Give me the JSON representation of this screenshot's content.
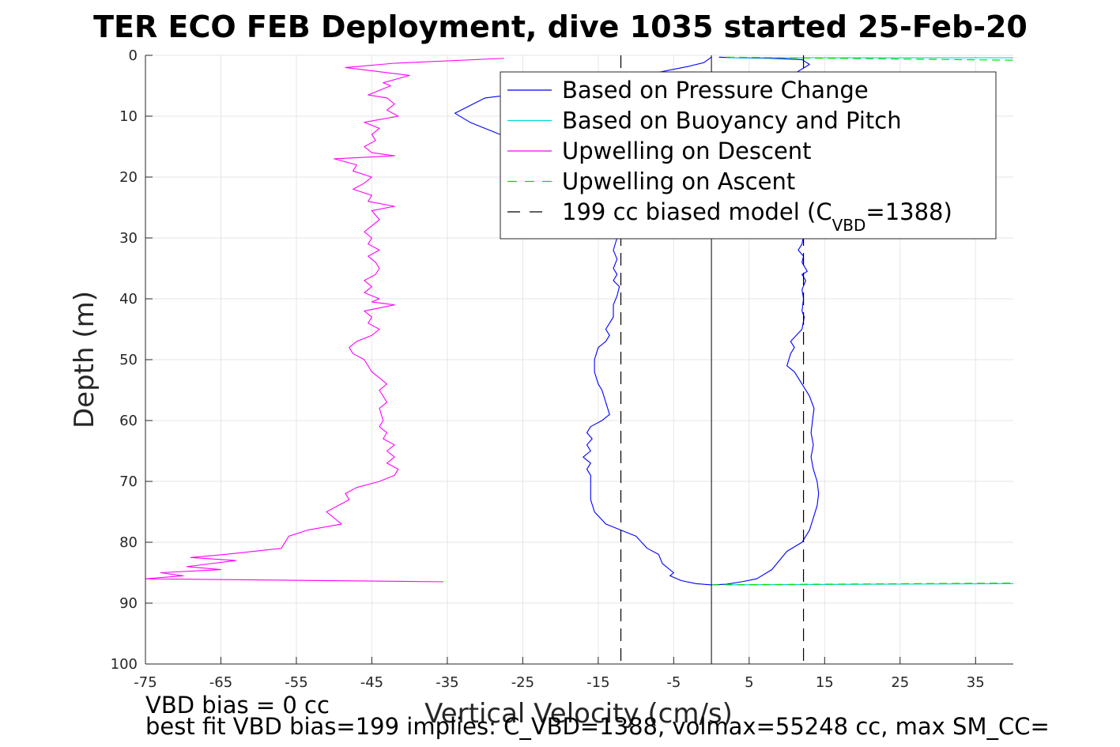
{
  "chart_data": {
    "type": "line",
    "title": "TER ECO FEB Deployment, dive 1035 started 25-Feb-20",
    "xlabel": "Vertical Velocity (cm/s)",
    "ylabel": "Depth (m)",
    "xlim": [
      -75,
      40
    ],
    "ylim": [
      0,
      100
    ],
    "y_reversed": true,
    "grid": true,
    "legend_position": "top-right",
    "x_ticks": [
      -75,
      -65,
      -55,
      -45,
      -35,
      -25,
      -15,
      -5,
      5,
      15,
      25,
      35
    ],
    "y_ticks": [
      0,
      10,
      20,
      30,
      40,
      50,
      60,
      70,
      80,
      90,
      100
    ],
    "legend": {
      "entries": [
        {
          "label": "Based on Pressure Change",
          "color": "#0000ff",
          "dash": "solid"
        },
        {
          "label": "Based on Buoyancy and Pitch",
          "color": "#00d8d8",
          "dash": "solid"
        },
        {
          "label": "Upwelling on Descent",
          "color": "#ff00ff",
          "dash": "solid"
        },
        {
          "label": "Upwelling on Ascent",
          "color": "#00e000",
          "dash": "dashed"
        },
        {
          "label_main": "199 cc biased model (C",
          "label_sub": "VBD",
          "label_end": "=1388)",
          "color": "#000000",
          "dash": "dashed"
        }
      ]
    },
    "series": [
      {
        "name": "Based on Pressure Change (descent)",
        "color": "#0000ff",
        "points": [
          [
            0,
            0.3
          ],
          [
            -1,
            1.2
          ],
          [
            -3,
            1.8
          ],
          [
            -10,
            3.5
          ],
          [
            -20,
            5.5
          ],
          [
            -30,
            7
          ],
          [
            -34,
            9.5
          ],
          [
            -32,
            11
          ],
          [
            -29,
            12.5
          ],
          [
            -26,
            14
          ],
          [
            -23,
            15.5
          ],
          [
            -20,
            17
          ],
          [
            -17,
            19
          ],
          [
            -15,
            21
          ],
          [
            -14,
            24
          ],
          [
            -13,
            27
          ],
          [
            -12.5,
            30
          ],
          [
            -13,
            32
          ],
          [
            -12.5,
            33.5
          ],
          [
            -13,
            35
          ],
          [
            -12.5,
            36
          ],
          [
            -13,
            37
          ],
          [
            -12.2,
            38
          ],
          [
            -12.5,
            39.5
          ],
          [
            -13,
            41
          ],
          [
            -13,
            43
          ],
          [
            -13.5,
            44
          ],
          [
            -14,
            45
          ],
          [
            -13.5,
            46
          ],
          [
            -14,
            47
          ],
          [
            -15,
            48
          ],
          [
            -15.5,
            50
          ],
          [
            -15.5,
            52
          ],
          [
            -15,
            54
          ],
          [
            -14.5,
            55
          ],
          [
            -14,
            57
          ],
          [
            -13.5,
            59
          ],
          [
            -14.5,
            60
          ],
          [
            -16,
            61
          ],
          [
            -16.5,
            62
          ],
          [
            -15.8,
            63
          ],
          [
            -16.5,
            64
          ],
          [
            -16,
            65
          ],
          [
            -17,
            66
          ],
          [
            -16,
            67
          ],
          [
            -16.5,
            68
          ],
          [
            -16,
            69
          ],
          [
            -16,
            71
          ],
          [
            -16,
            73
          ],
          [
            -15.5,
            75
          ],
          [
            -14,
            77
          ],
          [
            -12,
            78
          ],
          [
            -10,
            79
          ],
          [
            -8.5,
            81
          ],
          [
            -7,
            82
          ],
          [
            -6.5,
            83.5
          ],
          [
            -5,
            85
          ],
          [
            -5.5,
            85.5
          ],
          [
            -4,
            86.3
          ],
          [
            -2,
            86.8
          ],
          [
            0,
            87
          ]
        ]
      },
      {
        "name": "Based on Pressure Change (ascent)",
        "color": "#0000ff",
        "points": [
          [
            0,
            87
          ],
          [
            2,
            86.9
          ],
          [
            4,
            86.5
          ],
          [
            6,
            86
          ],
          [
            8,
            84.5
          ],
          [
            9,
            83
          ],
          [
            10,
            81.5
          ],
          [
            12,
            80
          ],
          [
            13,
            78
          ],
          [
            13.5,
            76
          ],
          [
            14,
            74
          ],
          [
            14.2,
            72
          ],
          [
            14,
            70
          ],
          [
            13.5,
            68
          ],
          [
            13.2,
            66
          ],
          [
            13.5,
            64
          ],
          [
            13.2,
            62
          ],
          [
            13.4,
            60
          ],
          [
            13.6,
            58
          ],
          [
            13,
            56
          ],
          [
            12,
            54
          ],
          [
            11,
            52
          ],
          [
            10,
            51
          ],
          [
            10.5,
            49
          ],
          [
            11,
            48
          ],
          [
            10.5,
            47
          ],
          [
            12,
            45
          ],
          [
            12.3,
            43
          ],
          [
            12,
            42
          ],
          [
            12.2,
            40
          ],
          [
            12,
            38.5
          ],
          [
            12.5,
            37
          ],
          [
            12,
            36
          ],
          [
            12.7,
            35.5
          ],
          [
            12,
            34
          ],
          [
            12.2,
            33
          ],
          [
            11.5,
            32
          ],
          [
            12,
            31
          ],
          [
            12.3,
            29
          ],
          [
            12,
            26
          ],
          [
            12.5,
            22
          ],
          [
            13,
            18
          ],
          [
            14,
            14
          ],
          [
            14,
            10
          ],
          [
            13,
            7
          ],
          [
            12,
            5
          ],
          [
            11,
            3
          ],
          [
            13,
            1.5
          ],
          [
            12,
            0.7
          ],
          [
            8,
            0.5
          ],
          [
            3,
            0.4
          ],
          [
            1,
            0.3
          ]
        ]
      },
      {
        "name": "Based on Buoyancy and Pitch",
        "color": "#00d8d8",
        "points": [
          [
            2.5,
            0.4
          ],
          [
            40,
            0.4
          ],
          [
            2,
            87
          ],
          [
            40,
            86.8
          ]
        ]
      },
      {
        "name": "Upwelling on Descent",
        "color": "#ff00ff",
        "points": [
          [
            -27.5,
            0.5
          ],
          [
            -42,
            1.3
          ],
          [
            -48.5,
            2
          ],
          [
            -40,
            3.3
          ],
          [
            -43.5,
            4.5
          ],
          [
            -42.5,
            5
          ],
          [
            -45.5,
            6.5
          ],
          [
            -43,
            7
          ],
          [
            -42,
            8
          ],
          [
            -43,
            9
          ],
          [
            -41.5,
            10
          ],
          [
            -46,
            11
          ],
          [
            -44,
            12
          ],
          [
            -45,
            13
          ],
          [
            -44.5,
            14
          ],
          [
            -46,
            15
          ],
          [
            -45,
            16
          ],
          [
            -42,
            16.5
          ],
          [
            -50,
            17
          ],
          [
            -47,
            18
          ],
          [
            -47.5,
            19
          ],
          [
            -45,
            20
          ],
          [
            -46,
            21
          ],
          [
            -47.5,
            22
          ],
          [
            -45,
            23
          ],
          [
            -45.5,
            24
          ],
          [
            -42,
            24.8
          ],
          [
            -45,
            25.5
          ],
          [
            -44,
            27
          ],
          [
            -46,
            29
          ],
          [
            -45,
            30
          ],
          [
            -45.5,
            31
          ],
          [
            -44,
            32
          ],
          [
            -45.5,
            33
          ],
          [
            -44.5,
            34
          ],
          [
            -44,
            35
          ],
          [
            -44.5,
            36
          ],
          [
            -46,
            37
          ],
          [
            -45,
            38
          ],
          [
            -46,
            39
          ],
          [
            -44,
            40
          ],
          [
            -45,
            40.5
          ],
          [
            -42,
            41
          ],
          [
            -46,
            42
          ],
          [
            -45,
            43
          ],
          [
            -45.5,
            44
          ],
          [
            -44,
            45
          ],
          [
            -45,
            46
          ],
          [
            -47,
            47
          ],
          [
            -48,
            48
          ],
          [
            -47.5,
            49
          ],
          [
            -46,
            50
          ],
          [
            -45,
            52
          ],
          [
            -44,
            53
          ],
          [
            -43,
            54
          ],
          [
            -44,
            55
          ],
          [
            -43,
            57
          ],
          [
            -44,
            58
          ],
          [
            -43.5,
            60
          ],
          [
            -44,
            61
          ],
          [
            -43,
            62
          ],
          [
            -43.5,
            63
          ],
          [
            -42,
            64
          ],
          [
            -43,
            65
          ],
          [
            -42,
            66
          ],
          [
            -43,
            67
          ],
          [
            -41.5,
            68
          ],
          [
            -42,
            69
          ],
          [
            -44,
            70
          ],
          [
            -47,
            71
          ],
          [
            -48.5,
            72
          ],
          [
            -48,
            73
          ],
          [
            -51,
            75
          ],
          [
            -49,
            77
          ],
          [
            -53.5,
            78
          ],
          [
            -56,
            79
          ],
          [
            -57,
            81
          ],
          [
            -64.5,
            82
          ],
          [
            -69,
            82.5
          ],
          [
            -63,
            83
          ],
          [
            -69.5,
            84
          ],
          [
            -65,
            84.5
          ],
          [
            -73,
            85
          ],
          [
            -70,
            85.5
          ],
          [
            -75,
            86
          ],
          [
            -35.5,
            86.5
          ]
        ]
      },
      {
        "name": "Upwelling on Ascent",
        "color": "#00e000",
        "points": [
          [
            0,
            87
          ],
          [
            40,
            86.7
          ],
          [
            2,
            0.3
          ],
          [
            40,
            0.8
          ]
        ]
      },
      {
        "name": "199 cc biased model",
        "color": "#000000",
        "points": [
          [
            -12,
            0
          ],
          [
            -12,
            100
          ],
          [
            12.2,
            0
          ],
          [
            12.2,
            100
          ]
        ]
      }
    ],
    "annotations": [
      "VBD bias = 0 cc",
      "best fit VBD bias=199 implies: C_VBD=1388, volmax=55248 cc, max SM_CC="
    ]
  }
}
